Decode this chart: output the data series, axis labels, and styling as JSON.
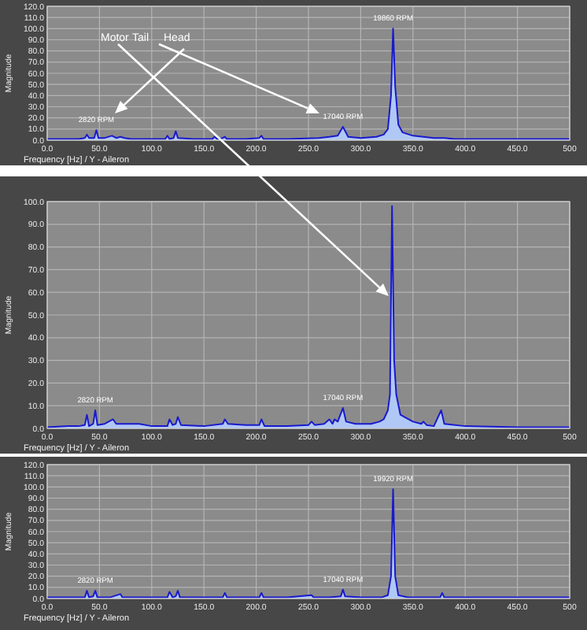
{
  "chart_data": [
    {
      "type": "area",
      "xlabel": "Frequency [Hz] / Y - Aileron",
      "ylabel": "Magnitude",
      "grid": true,
      "xlim": [
        0,
        500
      ],
      "ylim": [
        0,
        120
      ],
      "xticks": [
        {
          "value": 0,
          "label": "0.0"
        },
        {
          "value": 50,
          "label": "50.0"
        },
        {
          "value": 100,
          "label": "100.0"
        },
        {
          "value": 150,
          "label": "150.0"
        },
        {
          "value": 200,
          "label": "200.0"
        },
        {
          "value": 250,
          "label": "250.0"
        },
        {
          "value": 300,
          "label": "300.0"
        },
        {
          "value": 350,
          "label": "350.0"
        },
        {
          "value": 400,
          "label": "400.0"
        },
        {
          "value": 450,
          "label": "450.0"
        },
        {
          "value": 500,
          "label": "500"
        }
      ],
      "yticks": [
        {
          "value": 0,
          "label": "0.0"
        },
        {
          "value": 10,
          "label": "10.0"
        },
        {
          "value": 20,
          "label": "20.0"
        },
        {
          "value": 30,
          "label": "30.0"
        },
        {
          "value": 40,
          "label": "40.0"
        },
        {
          "value": 50,
          "label": "50.0"
        },
        {
          "value": 60,
          "label": "60.0"
        },
        {
          "value": 70,
          "label": "70.0"
        },
        {
          "value": 80,
          "label": "80.0"
        },
        {
          "value": 90,
          "label": "90.0"
        },
        {
          "value": 100,
          "label": "100.0"
        },
        {
          "value": 110,
          "label": "110.0"
        },
        {
          "value": 120,
          "label": "120.0"
        }
      ],
      "annotations": [
        {
          "text": "2820 RPM",
          "x": 47,
          "y": 9
        },
        {
          "text": "17040 RPM",
          "x": 283,
          "y": 12
        },
        {
          "text": "19860 RPM",
          "x": 331,
          "y": 100
        },
        "Motor",
        "Tail",
        "Head"
      ],
      "series": [
        {
          "color": "#1a1acc",
          "x": [
            0,
            10,
            20,
            30,
            36,
            38,
            40,
            45,
            47,
            49,
            55,
            62,
            66,
            70,
            74,
            80,
            95,
            100,
            113,
            115,
            117,
            121,
            123,
            125,
            140,
            158,
            160,
            163,
            168,
            170,
            172,
            190,
            203,
            205,
            207,
            230,
            260,
            270,
            278,
            283,
            288,
            300,
            315,
            322,
            326,
            329,
            331,
            333,
            336,
            340,
            350,
            370,
            380,
            390,
            420,
            460,
            500
          ],
          "values": [
            1,
            1,
            1,
            1,
            2,
            5,
            2,
            2,
            9,
            2,
            2,
            4,
            2,
            3,
            2,
            1,
            1,
            1,
            1,
            4,
            1,
            2,
            8,
            2,
            1,
            1,
            3,
            1,
            2,
            3,
            1,
            1,
            2,
            4,
            1,
            1,
            2,
            3,
            4,
            12,
            3,
            2,
            3,
            5,
            10,
            40,
            100,
            48,
            14,
            7,
            4,
            2,
            2,
            1,
            1,
            1,
            1
          ]
        }
      ]
    },
    {
      "type": "area",
      "xlabel": "Frequency [Hz] / Y - Aileron",
      "ylabel": "Magnitude",
      "grid": true,
      "xlim": [
        0,
        500
      ],
      "ylim": [
        0,
        100
      ],
      "xticks": [
        {
          "value": 0,
          "label": "0.0"
        },
        {
          "value": 50,
          "label": "50.0"
        },
        {
          "value": 100,
          "label": "100.0"
        },
        {
          "value": 150,
          "label": "150.0"
        },
        {
          "value": 200,
          "label": "200.0"
        },
        {
          "value": 250,
          "label": "250.0"
        },
        {
          "value": 300,
          "label": "300.0"
        },
        {
          "value": 350,
          "label": "350.0"
        },
        {
          "value": 400,
          "label": "400.0"
        },
        {
          "value": 450,
          "label": "450.0"
        },
        {
          "value": 500,
          "label": "500"
        }
      ],
      "yticks": [
        {
          "value": 0,
          "label": "0.0"
        },
        {
          "value": 10,
          "label": "10.0"
        },
        {
          "value": 20,
          "label": "20.0"
        },
        {
          "value": 30,
          "label": "30.0"
        },
        {
          "value": 40,
          "label": "40.0"
        },
        {
          "value": 50,
          "label": "50.0"
        },
        {
          "value": 60,
          "label": "60.0"
        },
        {
          "value": 70,
          "label": "70.0"
        },
        {
          "value": 80,
          "label": "80.0"
        },
        {
          "value": 90,
          "label": "90.0"
        },
        {
          "value": 100,
          "label": "100.0"
        }
      ],
      "annotations": [
        {
          "text": "2820 RPM",
          "x": 46,
          "y": 8
        },
        {
          "text": "17040 RPM",
          "x": 283,
          "y": 9
        }
      ],
      "series": [
        {
          "color": "#1a1acc",
          "x": [
            0,
            10,
            20,
            30,
            36,
            38,
            40,
            44,
            46,
            48,
            55,
            63,
            66,
            75,
            88,
            100,
            115,
            117,
            120,
            123,
            125,
            128,
            150,
            168,
            170,
            173,
            190,
            203,
            205,
            208,
            230,
            250,
            253,
            256,
            265,
            270,
            273,
            275,
            278,
            283,
            286,
            295,
            300,
            310,
            318,
            322,
            326,
            328,
            330,
            332,
            334,
            338,
            342,
            350,
            358,
            360,
            363,
            370,
            377,
            380,
            400,
            450,
            500
          ],
          "values": [
            0.5,
            0.8,
            1,
            1,
            1.5,
            6,
            1,
            2,
            8,
            1.5,
            2,
            4,
            2,
            2,
            2,
            1,
            1,
            4,
            1.5,
            2,
            5,
            1.5,
            1,
            2,
            4,
            2,
            1.5,
            1.5,
            4,
            1,
            1,
            1.5,
            3,
            1.5,
            2,
            4,
            2,
            4,
            3,
            9,
            3,
            2,
            2,
            2,
            3,
            4,
            8,
            15,
            98,
            30,
            15,
            6,
            5,
            3,
            2,
            3,
            1.5,
            1,
            8,
            2,
            1,
            0.5,
            0.5
          ]
        }
      ]
    },
    {
      "type": "area",
      "xlabel": "Frequency [Hz] / Y - Aileron",
      "ylabel": "Magnitude",
      "grid": true,
      "xlim": [
        0,
        500
      ],
      "ylim": [
        0,
        120
      ],
      "xticks": [
        {
          "value": 0,
          "label": "0.0"
        },
        {
          "value": 50,
          "label": "50.0"
        },
        {
          "value": 100,
          "label": "100.0"
        },
        {
          "value": 150,
          "label": "150.0"
        },
        {
          "value": 200,
          "label": "200.0"
        },
        {
          "value": 250,
          "label": "250.0"
        },
        {
          "value": 300,
          "label": "300.0"
        },
        {
          "value": 350,
          "label": "350.0"
        },
        {
          "value": 400,
          "label": "400.0"
        },
        {
          "value": 450,
          "label": "450.0"
        },
        {
          "value": 500,
          "label": "500"
        }
      ],
      "yticks": [
        {
          "value": 0,
          "label": "0.0"
        },
        {
          "value": 10,
          "label": "10.0"
        },
        {
          "value": 20,
          "label": "20.0"
        },
        {
          "value": 30,
          "label": "30.0"
        },
        {
          "value": 40,
          "label": "40.0"
        },
        {
          "value": 50,
          "label": "50.0"
        },
        {
          "value": 60,
          "label": "60.0"
        },
        {
          "value": 70,
          "label": "70.0"
        },
        {
          "value": 80,
          "label": "80.0"
        },
        {
          "value": 90,
          "label": "90.0"
        },
        {
          "value": 100,
          "label": "100.0"
        },
        {
          "value": 110,
          "label": "110.0"
        },
        {
          "value": 120,
          "label": "120.0"
        }
      ],
      "annotations": [
        {
          "text": "2820 RPM",
          "x": 46,
          "y": 7
        },
        {
          "text": "17040 RPM",
          "x": 283,
          "y": 8
        },
        {
          "text": "19920 RPM",
          "x": 331,
          "y": 98
        }
      ],
      "series": [
        {
          "color": "#1a1acc",
          "x": [
            0,
            20,
            36,
            38,
            40,
            44,
            46,
            48,
            60,
            70,
            72,
            80,
            100,
            115,
            117,
            120,
            123,
            125,
            127,
            150,
            168,
            170,
            172,
            203,
            205,
            207,
            230,
            253,
            255,
            270,
            281,
            283,
            285,
            300,
            320,
            326,
            329,
            331,
            333,
            336,
            345,
            376,
            378,
            380,
            420,
            500
          ],
          "values": [
            1,
            1,
            1,
            7,
            1,
            2,
            7,
            1,
            1,
            4,
            1,
            1,
            1,
            1,
            6,
            1,
            2,
            7,
            1,
            1,
            1,
            5,
            1,
            1,
            5,
            1,
            1,
            3,
            1,
            1,
            2,
            8,
            2,
            1,
            1,
            3,
            20,
            98,
            20,
            3,
            1,
            1,
            5,
            1,
            1,
            1
          ]
        }
      ]
    }
  ]
}
